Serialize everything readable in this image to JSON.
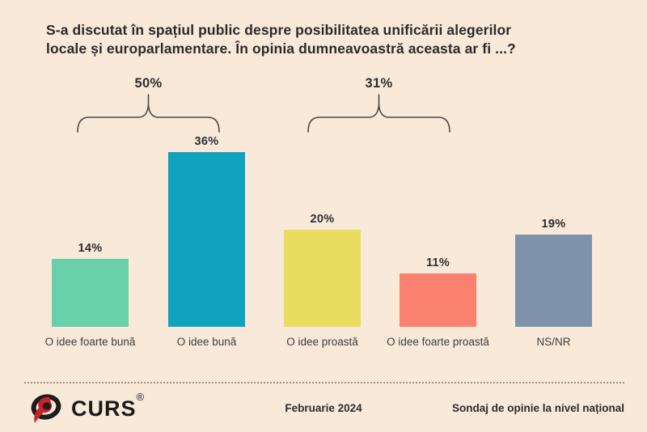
{
  "title": {
    "line1": "S-a discutat în spațiul public despre posibilitatea unificării alegerilor",
    "line2": "locale și europarlamentare. În opinia dumneavoastră aceasta ar fi ...?"
  },
  "chart_data": {
    "type": "bar",
    "categories": [
      "O idee foarte bună",
      "O idee bună",
      "O idee proastă",
      "O idee foarte proastă",
      "NS/NR"
    ],
    "values": [
      14,
      36,
      20,
      11,
      19
    ],
    "value_labels": [
      "14%",
      "36%",
      "20%",
      "11%",
      "19%"
    ],
    "bar_colors": [
      "#68d1ab",
      "#0fa3bd",
      "#e9dd5f",
      "#fa8170",
      "#7e92ac"
    ],
    "groups": [
      {
        "label": "50%",
        "covers": [
          "O idee foarte bună",
          "O idee bună"
        ]
      },
      {
        "label": "31%",
        "covers": [
          "O idee proastă",
          "O idee foarte proastă"
        ]
      }
    ],
    "ylim": [
      0,
      40
    ],
    "grid": false,
    "legend": false,
    "title": "S-a discutat în spațiul public despre posibilitatea unificării alegerilor locale și europarlamentare. În opinia dumneavoastră aceasta ar fi ...?"
  },
  "footer": {
    "logo_text": "CURS",
    "registered_mark": "®",
    "date": "Februarie 2024",
    "note": "Sondaj de opinie la nivel național"
  },
  "colors": {
    "background": "#f8e9d9",
    "bracket": "#4a4a4a",
    "logo_red": "#c8242b",
    "logo_dark": "#1d1d1d"
  }
}
